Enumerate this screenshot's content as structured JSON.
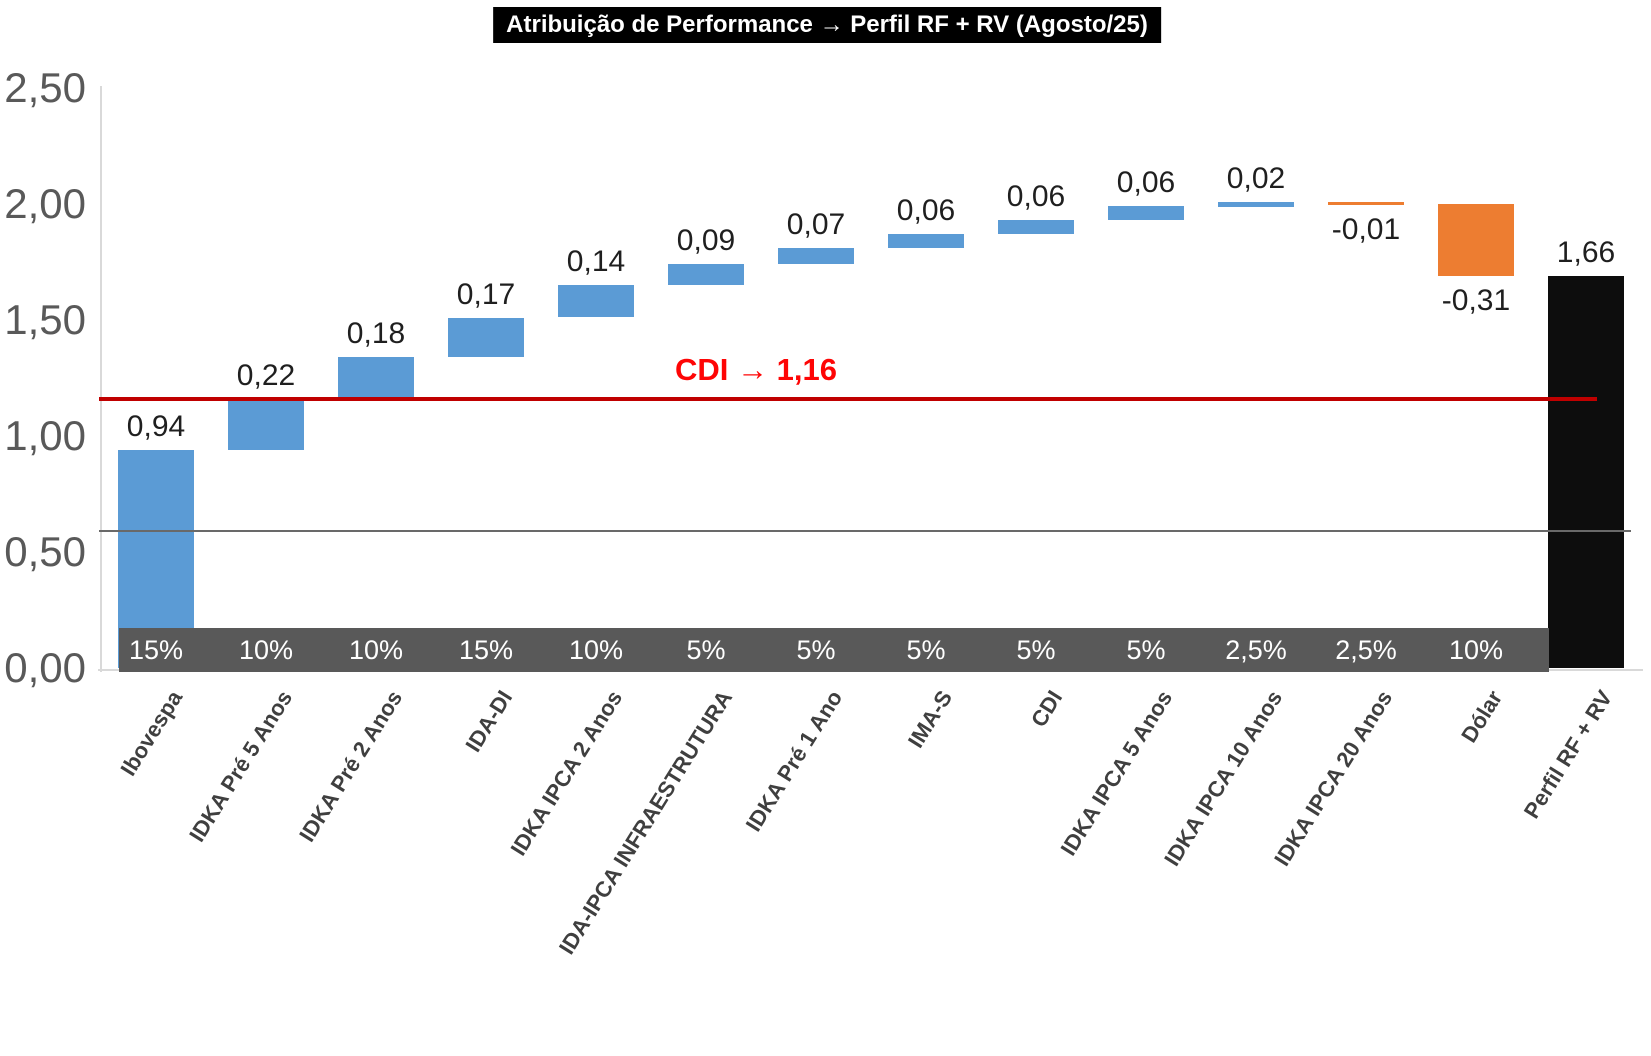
{
  "chart_data": {
    "type": "waterfall",
    "title": "Atribuição de Performance → Perfil RF + RV (Agosto/25)",
    "ylabel": "",
    "xlabel": "",
    "y_axis": {
      "min": 0,
      "max": 2.5,
      "step": 0.5,
      "tick_labels": [
        "0,00",
        "0,50",
        "1,00",
        "1,50",
        "2,00",
        "2,50"
      ]
    },
    "grid": "off",
    "legend": "none",
    "bars": [
      {
        "label": "Ibovespa",
        "value": 0.94,
        "display": "0,94",
        "weight": "15%",
        "role": "increase"
      },
      {
        "label": "IDKA Pré 5 Anos",
        "value": 0.22,
        "display": "0,22",
        "weight": "10%",
        "role": "increase"
      },
      {
        "label": "IDKA Pré 2 Anos",
        "value": 0.18,
        "display": "0,18",
        "weight": "10%",
        "role": "increase"
      },
      {
        "label": "IDA-DI",
        "value": 0.17,
        "display": "0,17",
        "weight": "15%",
        "role": "increase"
      },
      {
        "label": "IDKA IPCA 2 Anos",
        "value": 0.14,
        "display": "0,14",
        "weight": "10%",
        "role": "increase"
      },
      {
        "label": "IDA-IPCA INFRAESTRUTURA",
        "value": 0.09,
        "display": "0,09",
        "weight": "5%",
        "role": "increase"
      },
      {
        "label": "IDKA Pré 1 Ano",
        "value": 0.07,
        "display": "0,07",
        "weight": "5%",
        "role": "increase"
      },
      {
        "label": "IMA-S",
        "value": 0.06,
        "display": "0,06",
        "weight": "5%",
        "role": "increase"
      },
      {
        "label": "CDI",
        "value": 0.06,
        "display": "0,06",
        "weight": "5%",
        "role": "increase"
      },
      {
        "label": "IDKA IPCA 5 Anos",
        "value": 0.06,
        "display": "0,06",
        "weight": "5%",
        "role": "increase"
      },
      {
        "label": "IDKA IPCA 10 Anos",
        "value": 0.02,
        "display": "0,02",
        "weight": "2,5%",
        "role": "increase"
      },
      {
        "label": "IDKA IPCA 20 Anos",
        "value": -0.01,
        "display": "-0,01",
        "weight": "2,5%",
        "role": "decrease"
      },
      {
        "label": "Dólar",
        "value": -0.31,
        "display": "-0,31",
        "weight": "10%",
        "role": "decrease"
      },
      {
        "label": "Perfil RF + RV",
        "value": 1.66,
        "display": "1,66",
        "weight": null,
        "role": "total"
      }
    ],
    "reference_lines": [
      {
        "name": "cdi",
        "label": "CDI → 1,16",
        "value": 1.16,
        "line_color": "#c00000",
        "label_color": "#fe0505"
      },
      {
        "name": "secondary",
        "label": "",
        "value": 0.59,
        "line_color": "#696969",
        "label_color": ""
      }
    ],
    "colors": {
      "increase": "#5b9bd5",
      "decrease": "#ed7d31",
      "total": "#0d0d0d",
      "weights_band": "#595959",
      "axis": "#d9d9d9",
      "tick_text": "#595959",
      "category_text": "#3f3f3f",
      "value_text": "#1f1f1f"
    }
  }
}
